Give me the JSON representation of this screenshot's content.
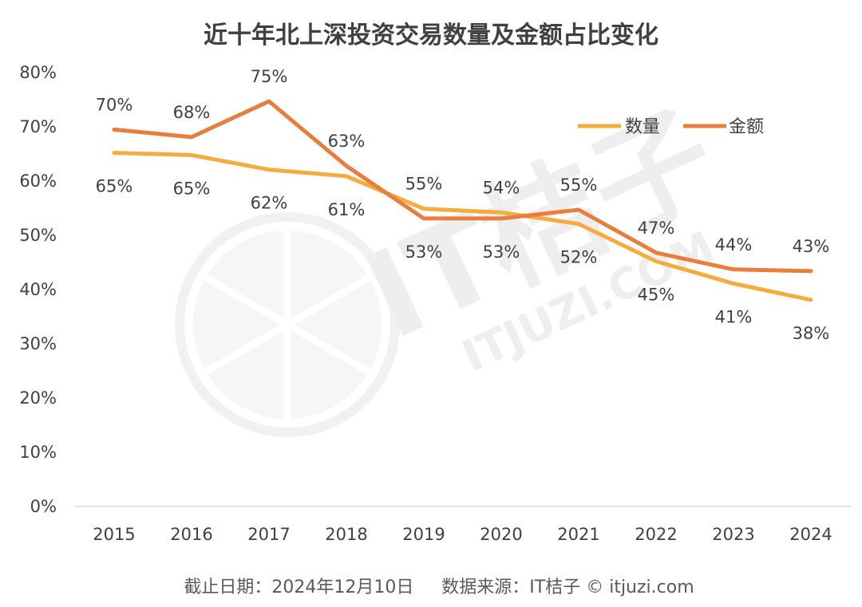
{
  "chart_data": {
    "type": "line",
    "title": "近十年北上深投资交易数量及金额占比变化",
    "categories": [
      "2015",
      "2016",
      "2017",
      "2018",
      "2019",
      "2020",
      "2021",
      "2022",
      "2023",
      "2024"
    ],
    "y_ticks": [
      "0%",
      "10%",
      "20%",
      "30%",
      "40%",
      "50%",
      "60%",
      "70%",
      "80%"
    ],
    "ylim": [
      0,
      80
    ],
    "xlabel": "",
    "ylabel": "",
    "grid": false,
    "legend_position": "top-right",
    "series": [
      {
        "name": "数量",
        "color": "#f4ac3f",
        "values": [
          65.2,
          64.8,
          62.1,
          60.9,
          54.9,
          54.2,
          52.1,
          45.2,
          41.1,
          38.1
        ],
        "labels": [
          "65%",
          "65%",
          "62%",
          "61%",
          "55%",
          "54%",
          "52%",
          "45%",
          "41%",
          "38%"
        ]
      },
      {
        "name": "金额",
        "color": "#e87d3e",
        "values": [
          69.5,
          68.1,
          74.7,
          62.8,
          53.1,
          53.1,
          54.7,
          46.8,
          43.7,
          43.4
        ],
        "labels": [
          "70%",
          "68%",
          "75%",
          "63%",
          "53%",
          "53%",
          "55%",
          "47%",
          "44%",
          "43%"
        ]
      }
    ]
  },
  "footer": {
    "source": "截止日期：2024年12月10日     数据来源：IT桔子 © itjuzi.com"
  },
  "watermark": {
    "brand": "IT桔子",
    "site": "ITJUZI.COM"
  }
}
